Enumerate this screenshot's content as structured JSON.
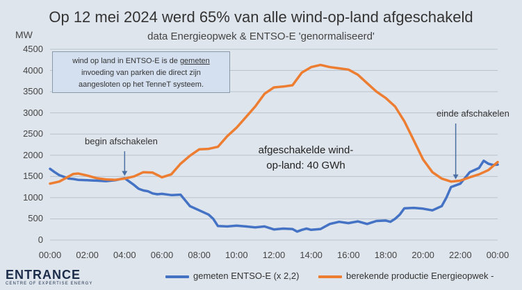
{
  "chart_data": {
    "type": "line",
    "title": "Op 12 mei 2024 werd 65% van alle wind-op-land afgeschakeld",
    "subtitle": "data Energieopwek & ENTSO-E 'genormaliseerd'",
    "ylabel": "MW",
    "xlabel": "",
    "ylim": [
      0,
      4500
    ],
    "yticks": [
      0,
      500,
      1000,
      1500,
      2000,
      2500,
      3000,
      3500,
      4000,
      4500
    ],
    "xticks": [
      "00:00",
      "02:00",
      "04:00",
      "06:00",
      "08:00",
      "10:00",
      "12:00",
      "14:00",
      "16:00",
      "18:00",
      "20:00",
      "22:00",
      "00:00"
    ],
    "xlim_hours": [
      0,
      24
    ],
    "grid": true,
    "series": [
      {
        "name": "gemeten ENTSO-E (x 2,2)",
        "color": "#4472c4",
        "x": [
          0.0,
          0.25,
          0.5,
          0.75,
          1.0,
          1.25,
          1.5,
          2.0,
          2.5,
          3.0,
          3.5,
          4.0,
          4.25,
          4.5,
          4.75,
          5.0,
          5.25,
          5.5,
          5.75,
          6.0,
          6.5,
          7.0,
          7.5,
          8.0,
          8.5,
          8.75,
          9.0,
          9.5,
          10.0,
          10.5,
          11.0,
          11.5,
          12.0,
          12.5,
          13.0,
          13.25,
          13.5,
          13.75,
          14.0,
          14.5,
          15.0,
          15.5,
          16.0,
          16.5,
          17.0,
          17.5,
          18.0,
          18.25,
          18.5,
          18.75,
          19.0,
          19.5,
          20.0,
          20.5,
          21.0,
          21.25,
          21.5,
          22.0,
          22.5,
          23.0,
          23.25,
          23.5,
          23.75,
          24.0
        ],
        "values": [
          1680,
          1600,
          1530,
          1490,
          1450,
          1440,
          1420,
          1410,
          1400,
          1390,
          1410,
          1460,
          1380,
          1300,
          1210,
          1170,
          1150,
          1100,
          1080,
          1090,
          1060,
          1070,
          800,
          700,
          600,
          500,
          330,
          320,
          340,
          320,
          300,
          320,
          250,
          270,
          260,
          200,
          240,
          270,
          240,
          260,
          380,
          430,
          400,
          440,
          380,
          450,
          460,
          430,
          500,
          600,
          750,
          760,
          740,
          700,
          800,
          1000,
          1250,
          1330,
          1600,
          1700,
          1870,
          1800,
          1770,
          1780
        ]
      },
      {
        "name": "berekende productie Energieopwek -",
        "color": "#ed7d31",
        "x": [
          0.0,
          0.5,
          1.0,
          1.25,
          1.5,
          2.0,
          2.5,
          3.0,
          3.5,
          4.0,
          4.5,
          5.0,
          5.5,
          6.0,
          6.5,
          7.0,
          7.5,
          8.0,
          8.5,
          9.0,
          9.5,
          10.0,
          10.5,
          11.0,
          11.5,
          12.0,
          12.5,
          13.0,
          13.5,
          14.0,
          14.5,
          15.0,
          15.5,
          16.0,
          16.5,
          17.0,
          17.5,
          18.0,
          18.5,
          19.0,
          19.5,
          20.0,
          20.5,
          21.0,
          21.5,
          22.0,
          22.5,
          23.0,
          23.5,
          24.0
        ],
        "values": [
          1330,
          1380,
          1500,
          1560,
          1570,
          1520,
          1460,
          1430,
          1420,
          1450,
          1500,
          1600,
          1590,
          1480,
          1550,
          1800,
          1990,
          2140,
          2150,
          2200,
          2450,
          2650,
          2900,
          3150,
          3450,
          3600,
          3620,
          3650,
          3950,
          4080,
          4130,
          4080,
          4050,
          4020,
          3900,
          3700,
          3500,
          3350,
          3150,
          2800,
          2350,
          1900,
          1600,
          1450,
          1380,
          1400,
          1480,
          1550,
          1650,
          1840
        ]
      }
    ],
    "annotations": {
      "begin": "begin afschakelen",
      "end": "einde afschakelen",
      "center_line1": "afgeschakelde wind-",
      "center_line2": "op-land: 40 GWh"
    },
    "note": {
      "line1_a": "wind op land in ENTSO-E is de ",
      "line1_u": "gemeten",
      "line2": "invoeding van parken die direct zijn",
      "line3": "aangesloten op het TenneT systeem."
    }
  },
  "logo": {
    "name": "ENTRANCE",
    "tagline": "CENTRE OF EXPERTISE ENERGY"
  }
}
